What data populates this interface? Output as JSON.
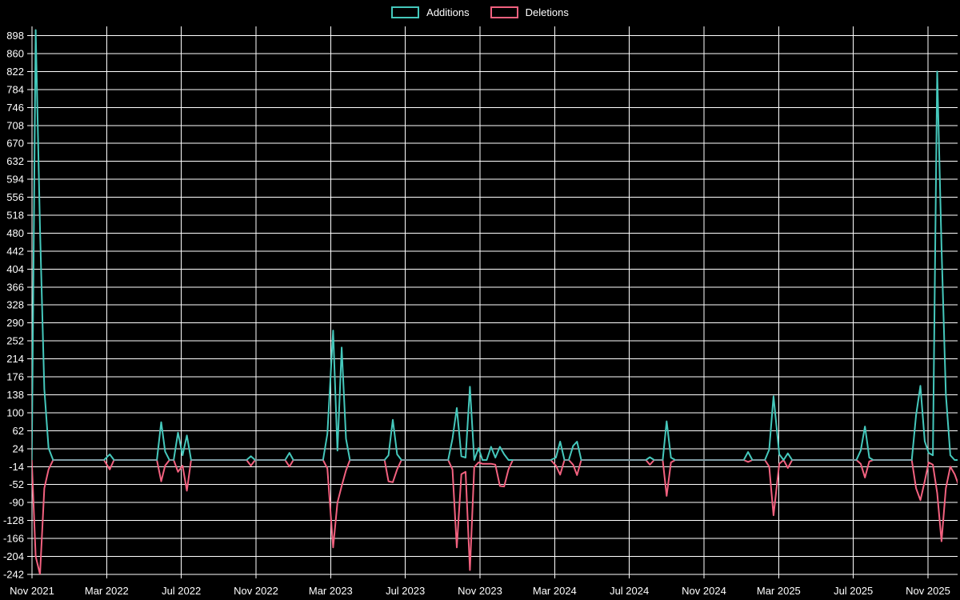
{
  "legend": {
    "items": [
      {
        "label": "Additions",
        "color": "#45c8bc"
      },
      {
        "label": "Deletions",
        "color": "#f2617f"
      }
    ]
  },
  "colors": {
    "background": "#000000",
    "grid": "#ffffff",
    "text": "#ffffff",
    "additions": "#45c8bc",
    "deletions": "#f2617f",
    "zero_baseline": "#7f9aa3"
  },
  "chart_data": {
    "type": "line",
    "title": "",
    "xlabel": "",
    "ylabel": "",
    "grid": true,
    "legend_position": "top-center",
    "y_axis": {
      "min": -242,
      "max": 898,
      "step": 38,
      "ticks": [
        898,
        860,
        822,
        784,
        746,
        708,
        670,
        632,
        594,
        556,
        518,
        480,
        442,
        404,
        366,
        328,
        290,
        252,
        214,
        176,
        138,
        100,
        62,
        24,
        -14,
        -52,
        -90,
        -128,
        -166,
        -204,
        -242
      ]
    },
    "x_axis": {
      "unit": "month",
      "ticks": [
        {
          "label": "Nov 2021",
          "month": 0
        },
        {
          "label": "Mar 2022",
          "month": 4
        },
        {
          "label": "Jul 2022",
          "month": 8
        },
        {
          "label": "Nov 2022",
          "month": 12
        },
        {
          "label": "Mar 2023",
          "month": 16
        },
        {
          "label": "Jul 2023",
          "month": 20
        },
        {
          "label": "Nov 2023",
          "month": 24
        },
        {
          "label": "Mar 2024",
          "month": 28
        },
        {
          "label": "Jul 2024",
          "month": 32
        },
        {
          "label": "Nov 2024",
          "month": 36
        },
        {
          "label": "Mar 2025",
          "month": 40
        },
        {
          "label": "Jul 2025",
          "month": 44
        },
        {
          "label": "Nov 2025",
          "month": 48
        }
      ]
    },
    "series": [
      {
        "name": "Additions",
        "color": "#45c8bc",
        "value_index": 1
      },
      {
        "name": "Deletions",
        "color": "#f2617f",
        "value_index": 2
      }
    ],
    "point_format": [
      "week_date",
      "additions",
      "deletions"
    ],
    "points": [
      [
        "2021-10-31",
        0,
        0
      ],
      [
        "2021-11-07",
        910,
        -204
      ],
      [
        "2021-11-14",
        490,
        -242
      ],
      [
        "2021-11-21",
        150,
        -60
      ],
      [
        "2021-11-28",
        25,
        -20
      ],
      [
        "2021-12-05",
        0,
        0
      ],
      [
        "2022-02-27",
        0,
        0
      ],
      [
        "2022-03-06",
        12,
        -20
      ],
      [
        "2022-03-13",
        0,
        0
      ],
      [
        "2022-05-22",
        0,
        0
      ],
      [
        "2022-05-29",
        80,
        -45
      ],
      [
        "2022-06-05",
        18,
        -12
      ],
      [
        "2022-06-12",
        0,
        0
      ],
      [
        "2022-06-19",
        0,
        0
      ],
      [
        "2022-06-26",
        58,
        -25
      ],
      [
        "2022-07-03",
        10,
        -12
      ],
      [
        "2022-07-10",
        52,
        -65
      ],
      [
        "2022-07-17",
        0,
        0
      ],
      [
        "2022-10-16",
        0,
        0
      ],
      [
        "2022-10-23",
        8,
        -12
      ],
      [
        "2022-10-30",
        0,
        0
      ],
      [
        "2022-12-18",
        0,
        0
      ],
      [
        "2022-12-25",
        15,
        -14
      ],
      [
        "2023-01-01",
        0,
        0
      ],
      [
        "2023-02-19",
        0,
        0
      ],
      [
        "2023-02-26",
        55,
        -18
      ],
      [
        "2023-03-05",
        274,
        -185
      ],
      [
        "2023-03-12",
        20,
        -90
      ],
      [
        "2023-03-19",
        238,
        -55
      ],
      [
        "2023-03-26",
        45,
        -22
      ],
      [
        "2023-04-02",
        0,
        0
      ],
      [
        "2023-05-28",
        0,
        0
      ],
      [
        "2023-06-04",
        10,
        -45
      ],
      [
        "2023-06-11",
        85,
        -47
      ],
      [
        "2023-06-18",
        12,
        -20
      ],
      [
        "2023-06-25",
        0,
        0
      ],
      [
        "2023-09-10",
        0,
        0
      ],
      [
        "2023-09-17",
        45,
        -20
      ],
      [
        "2023-09-24",
        110,
        -185
      ],
      [
        "2023-10-01",
        8,
        -30
      ],
      [
        "2023-10-08",
        5,
        -25
      ],
      [
        "2023-10-15",
        155,
        -233
      ],
      [
        "2023-10-22",
        0,
        -15
      ],
      [
        "2023-10-29",
        25,
        -5
      ],
      [
        "2023-11-05",
        0,
        -8
      ],
      [
        "2023-11-12",
        0,
        -8
      ],
      [
        "2023-11-19",
        28,
        -8
      ],
      [
        "2023-11-26",
        5,
        -10
      ],
      [
        "2023-12-03",
        28,
        -55
      ],
      [
        "2023-12-10",
        12,
        -56
      ],
      [
        "2023-12-17",
        0,
        -20
      ],
      [
        "2023-12-24",
        0,
        0
      ],
      [
        "2024-02-25",
        0,
        0
      ],
      [
        "2024-03-03",
        5,
        -12
      ],
      [
        "2024-03-10",
        39,
        -31
      ],
      [
        "2024-03-17",
        0,
        0
      ],
      [
        "2024-03-24",
        0,
        0
      ],
      [
        "2024-03-31",
        30,
        -10
      ],
      [
        "2024-04-07",
        39,
        -32
      ],
      [
        "2024-04-14",
        0,
        0
      ],
      [
        "2024-07-28",
        0,
        0
      ],
      [
        "2024-08-04",
        6,
        -10
      ],
      [
        "2024-08-11",
        0,
        0
      ],
      [
        "2024-08-25",
        0,
        0
      ],
      [
        "2024-09-01",
        82,
        -76
      ],
      [
        "2024-09-08",
        5,
        -5
      ],
      [
        "2024-09-15",
        0,
        0
      ],
      [
        "2025-01-05",
        0,
        0
      ],
      [
        "2025-01-12",
        17,
        -4
      ],
      [
        "2025-01-19",
        0,
        0
      ],
      [
        "2025-02-09",
        0,
        0
      ],
      [
        "2025-02-16",
        22,
        -14
      ],
      [
        "2025-02-23",
        135,
        -117
      ],
      [
        "2025-03-02",
        12,
        -8
      ],
      [
        "2025-03-09",
        0,
        0
      ],
      [
        "2025-03-16",
        14,
        -17
      ],
      [
        "2025-03-23",
        0,
        0
      ],
      [
        "2025-07-06",
        0,
        0
      ],
      [
        "2025-07-13",
        20,
        -8
      ],
      [
        "2025-07-20",
        71,
        -37
      ],
      [
        "2025-07-27",
        5,
        -3
      ],
      [
        "2025-08-03",
        0,
        0
      ],
      [
        "2025-10-05",
        0,
        0
      ],
      [
        "2025-10-12",
        95,
        -60
      ],
      [
        "2025-10-19",
        157,
        -85
      ],
      [
        "2025-10-26",
        40,
        -45
      ],
      [
        "2025-11-02",
        15,
        -5
      ],
      [
        "2025-11-09",
        10,
        -10
      ],
      [
        "2025-11-16",
        822,
        -70
      ],
      [
        "2025-11-23",
        450,
        -172
      ],
      [
        "2025-11-30",
        140,
        -60
      ],
      [
        "2025-12-07",
        10,
        -14
      ],
      [
        "2025-12-14",
        0,
        -30
      ],
      [
        "2025-12-21",
        0,
        -55
      ]
    ]
  }
}
